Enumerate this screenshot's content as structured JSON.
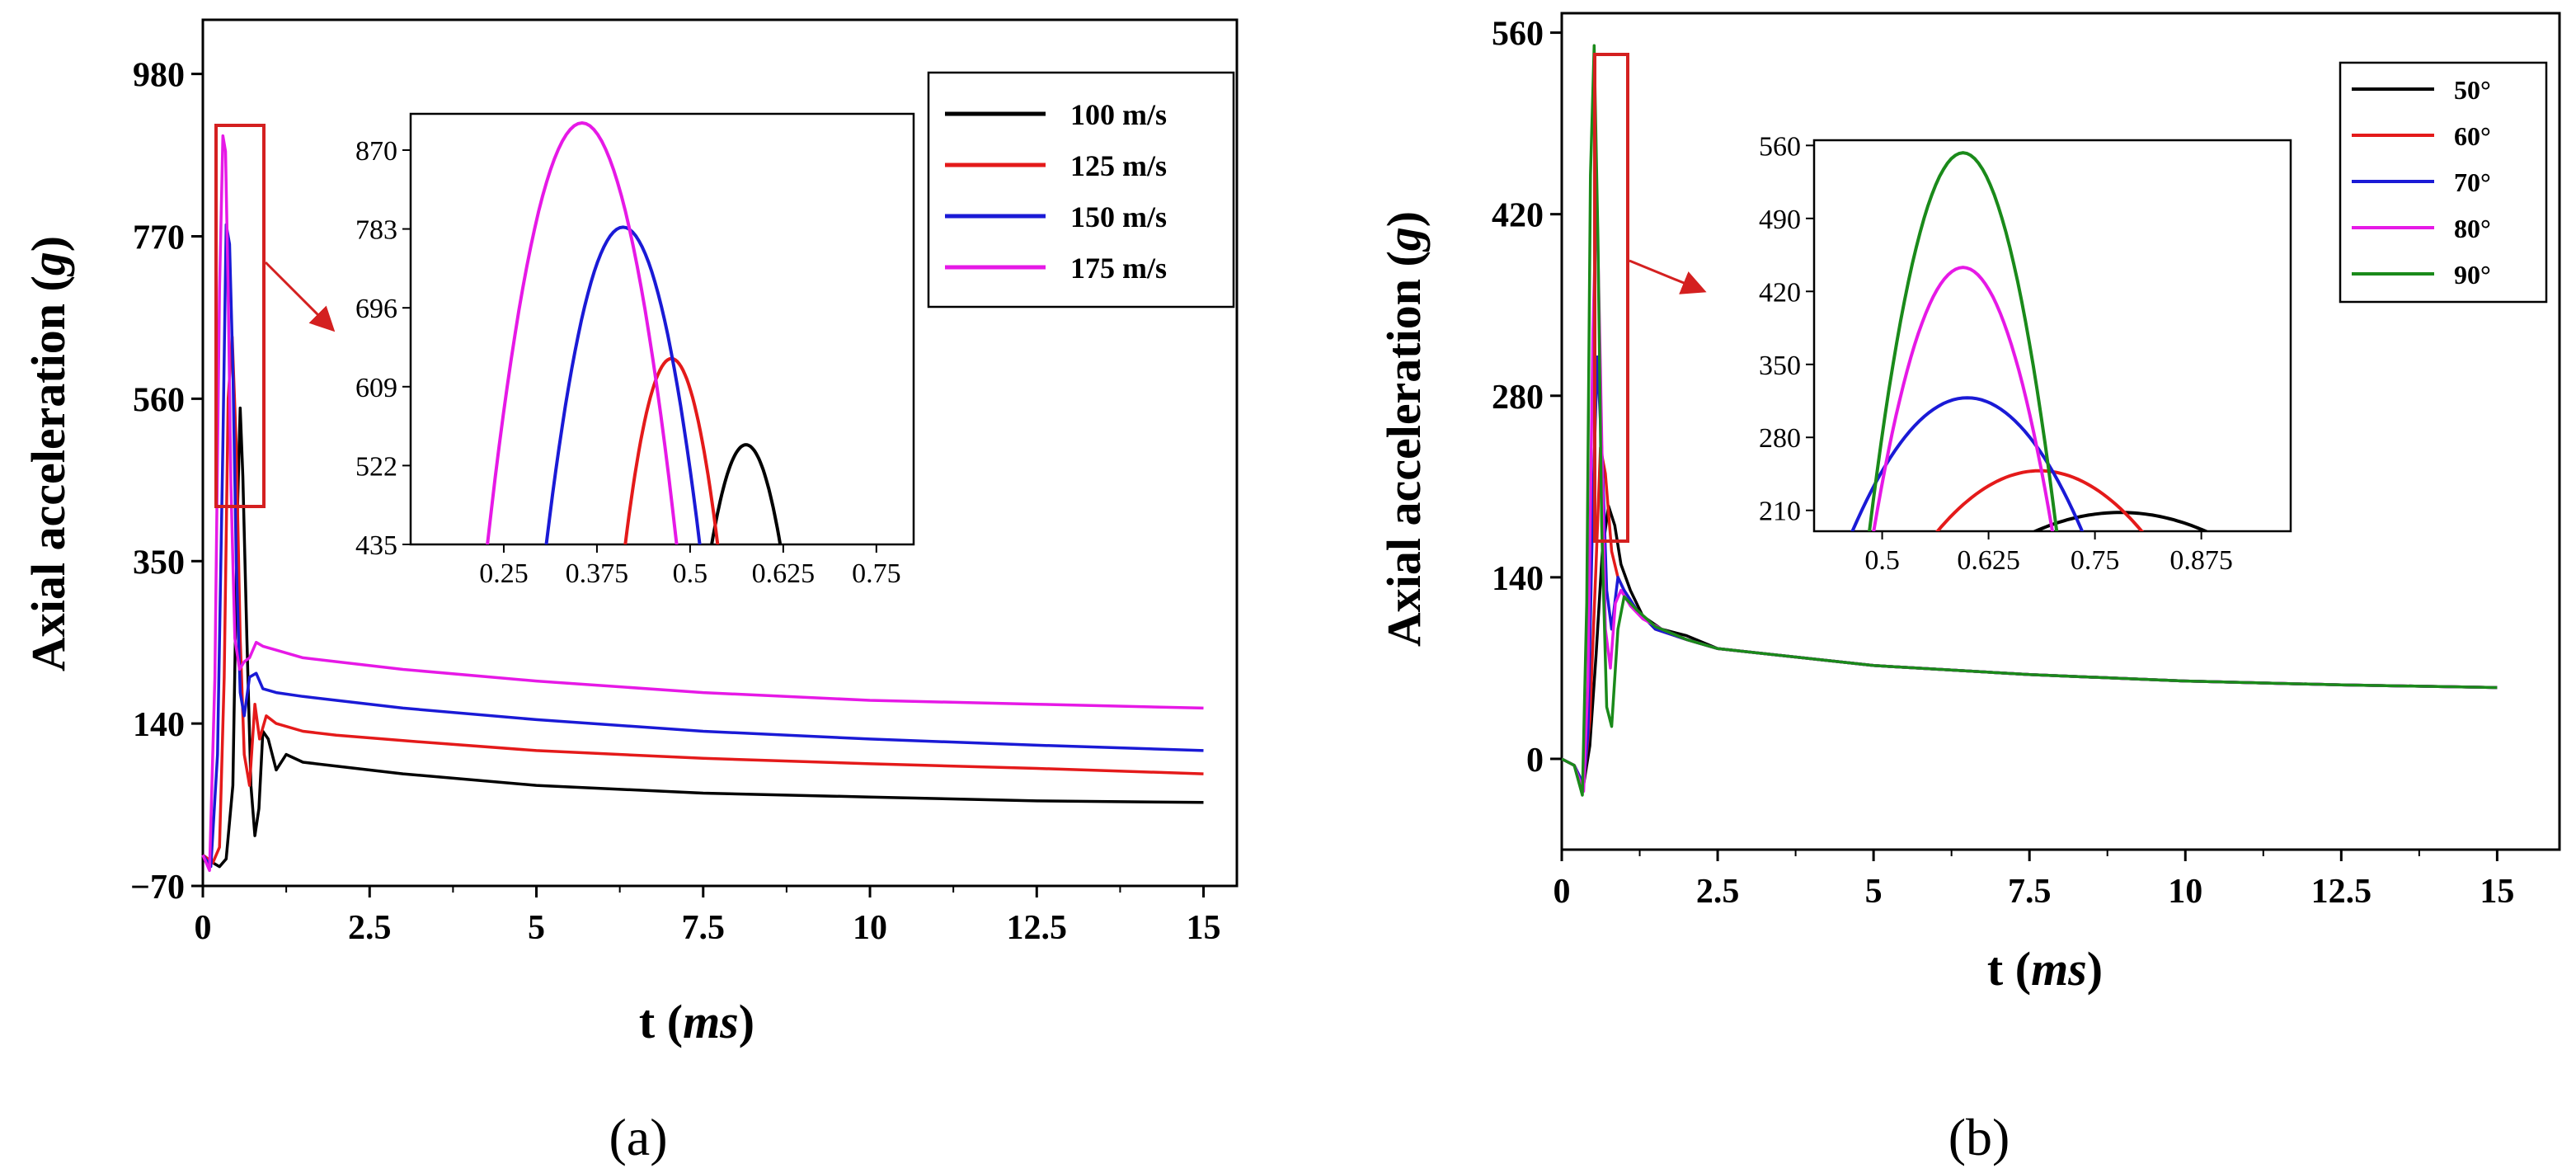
{
  "colors": {
    "black": "#000000",
    "red": "#e41a1a",
    "blue": "#1a1ad6",
    "magenta": "#e619e6",
    "green": "#1a8a1a",
    "zoom_box": "#d42020"
  },
  "chart_data": [
    {
      "panel_label": "(a)",
      "type": "line",
      "title": "",
      "xlabel": "t (ms)",
      "xlabel_main": "t (",
      "xlabel_unit": "ms",
      "xlabel_close": ")",
      "ylabel": "Axial acceleration (g)",
      "ylabel_main": "Axial acceleration (",
      "ylabel_unit": "g",
      "ylabel_close": ")",
      "xlim": [
        0,
        15.5
      ],
      "ylim": [
        -70,
        1050
      ],
      "xticks": [
        0,
        2.5,
        5,
        7.5,
        10,
        12.5,
        15
      ],
      "xtick_labels": [
        "0",
        "2.5",
        "5",
        "7.5",
        "10",
        "12.5",
        "15"
      ],
      "yticks": [
        -70,
        140,
        350,
        560,
        770,
        980
      ],
      "ytick_labels": [
        "−70",
        "140",
        "350",
        "560",
        "770",
        "980"
      ],
      "legend_position": "top-right",
      "series": [
        {
          "name": "100 m/s",
          "color": "#000000",
          "x": [
            0,
            0.15,
            0.25,
            0.35,
            0.45,
            0.52,
            0.56,
            0.6,
            0.66,
            0.72,
            0.78,
            0.84,
            0.9,
            0.98,
            1.1,
            1.25,
            1.5,
            2,
            3,
            5,
            7.5,
            10,
            12.5,
            15
          ],
          "y": [
            -30,
            -40,
            -45,
            -35,
            60,
            420,
            548,
            460,
            250,
            60,
            -5,
            30,
            130,
            120,
            80,
            100,
            90,
            85,
            75,
            60,
            50,
            45,
            40,
            38
          ]
        },
        {
          "name": "125 m/s",
          "color": "#e41a1a",
          "x": [
            0,
            0.15,
            0.25,
            0.32,
            0.38,
            0.44,
            0.5,
            0.56,
            0.62,
            0.7,
            0.78,
            0.85,
            0.95,
            1.1,
            1.5,
            2,
            3,
            5,
            7.5,
            10,
            12.5,
            15
          ],
          "y": [
            -30,
            -40,
            -20,
            200,
            560,
            640,
            500,
            250,
            100,
            60,
            165,
            120,
            150,
            140,
            130,
            125,
            118,
            105,
            95,
            88,
            82,
            75
          ]
        },
        {
          "name": "150 m/s",
          "color": "#1a1ad6",
          "x": [
            0,
            0.12,
            0.22,
            0.3,
            0.35,
            0.4,
            0.45,
            0.5,
            0.56,
            0.62,
            0.7,
            0.8,
            0.9,
            1.1,
            1.5,
            2,
            3,
            5,
            7.5,
            10,
            12.5,
            15
          ],
          "y": [
            -30,
            -45,
            100,
            500,
            785,
            760,
            600,
            350,
            180,
            150,
            200,
            205,
            185,
            180,
            175,
            170,
            160,
            145,
            130,
            120,
            112,
            105
          ]
        },
        {
          "name": "175 m/s",
          "color": "#e619e6",
          "x": [
            0,
            0.1,
            0.18,
            0.25,
            0.3,
            0.34,
            0.38,
            0.42,
            0.48,
            0.55,
            0.62,
            0.7,
            0.8,
            0.9,
            1.1,
            1.5,
            2,
            3,
            5,
            7.5,
            10,
            12.5,
            15
          ],
          "y": [
            -30,
            -50,
            200,
            700,
            900,
            880,
            700,
            450,
            250,
            210,
            220,
            225,
            245,
            240,
            235,
            225,
            220,
            210,
            195,
            180,
            170,
            165,
            160
          ]
        }
      ],
      "inset": {
        "xlim": [
          0.125,
          0.8
        ],
        "ylim": [
          435,
          910
        ],
        "xticks": [
          0.25,
          0.375,
          0.5,
          0.625,
          0.75
        ],
        "xtick_labels": [
          "0.25",
          "0.375",
          "0.5",
          "0.625",
          "0.75"
        ],
        "yticks": [
          435,
          522,
          609,
          696,
          783,
          870
        ],
        "ytick_labels": [
          "435",
          "522",
          "609",
          "696",
          "783",
          "870"
        ],
        "series": [
          {
            "name": "100 m/s",
            "peak_x": 0.575,
            "peak_y": 545,
            "half_width": 0.046
          },
          {
            "name": "125 m/s",
            "peak_x": 0.475,
            "peak_y": 640,
            "half_width": 0.062
          },
          {
            "name": "150 m/s",
            "peak_x": 0.41,
            "peak_y": 785,
            "half_width": 0.103
          },
          {
            "name": "175 m/s",
            "peak_x": 0.355,
            "peak_y": 900,
            "half_width": 0.127
          }
        ]
      }
    },
    {
      "panel_label": "(b)",
      "type": "line",
      "title": "",
      "xlabel": "t (ms)",
      "xlabel_main": "t (",
      "xlabel_unit": "ms",
      "xlabel_close": ")",
      "ylabel": "Axial acceleration (g)",
      "ylabel_main": "Axial acceleration (",
      "ylabel_unit": "g",
      "ylabel_close": ")",
      "xlim": [
        0,
        16
      ],
      "ylim": [
        -70,
        575
      ],
      "xticks": [
        0,
        2.5,
        5,
        7.5,
        10,
        12.5,
        15
      ],
      "xtick_labels": [
        "0",
        "2.5",
        "5",
        "7.5",
        "10",
        "12.5",
        "15"
      ],
      "yticks": [
        0,
        140,
        280,
        420,
        560
      ],
      "ytick_labels": [
        "0",
        "140",
        "280",
        "420",
        "560"
      ],
      "legend_position": "top-right",
      "series": [
        {
          "name": "50°",
          "color": "#000000",
          "x": [
            0,
            0.2,
            0.35,
            0.45,
            0.55,
            0.65,
            0.75,
            0.85,
            0.95,
            1.1,
            1.3,
            1.6,
            2,
            2.5,
            5,
            7.5,
            10,
            12.5,
            15
          ],
          "y": [
            0,
            -5,
            -20,
            10,
            80,
            160,
            195,
            180,
            150,
            130,
            110,
            100,
            95,
            85,
            72,
            65,
            60,
            57,
            55
          ]
        },
        {
          "name": "60°",
          "color": "#e41a1a",
          "x": [
            0,
            0.2,
            0.35,
            0.45,
            0.55,
            0.62,
            0.7,
            0.8,
            0.9,
            1.0,
            1.2,
            1.5,
            2,
            2.5,
            5,
            7.5,
            10,
            12.5,
            15
          ],
          "y": [
            0,
            -5,
            -20,
            30,
            150,
            240,
            220,
            160,
            140,
            130,
            115,
            100,
            92,
            85,
            72,
            65,
            60,
            57,
            55
          ]
        },
        {
          "name": "70°",
          "color": "#1a1ad6",
          "x": [
            0,
            0.2,
            0.35,
            0.42,
            0.5,
            0.57,
            0.65,
            0.72,
            0.8,
            0.9,
            1.0,
            1.2,
            1.5,
            2,
            2.5,
            5,
            7.5,
            10,
            12.5,
            15
          ],
          "y": [
            0,
            -5,
            -20,
            20,
            200,
            310,
            230,
            130,
            100,
            140,
            130,
            115,
            100,
            92,
            85,
            72,
            65,
            60,
            57,
            55
          ]
        },
        {
          "name": "80°",
          "color": "#e619e6",
          "x": [
            0,
            0.2,
            0.35,
            0.42,
            0.5,
            0.56,
            0.62,
            0.7,
            0.78,
            0.86,
            0.95,
            1.1,
            1.3,
            1.6,
            2,
            2.5,
            5,
            7.5,
            10,
            12.5,
            15
          ],
          "y": [
            0,
            -5,
            -25,
            60,
            330,
            440,
            300,
            100,
            70,
            120,
            130,
            118,
            108,
            100,
            92,
            85,
            72,
            65,
            60,
            57,
            55
          ]
        },
        {
          "name": "90°",
          "color": "#1a8a1a",
          "x": [
            0,
            0.2,
            0.33,
            0.4,
            0.46,
            0.52,
            0.58,
            0.64,
            0.72,
            0.8,
            0.9,
            1.0,
            1.2,
            1.5,
            2,
            2.5,
            5,
            7.5,
            10,
            12.5,
            15
          ],
          "y": [
            0,
            -5,
            -28,
            120,
            450,
            550,
            400,
            180,
            40,
            25,
            100,
            125,
            115,
            102,
            92,
            85,
            72,
            65,
            60,
            57,
            55
          ]
        }
      ],
      "inset": {
        "xlim": [
          0.42,
          0.98
        ],
        "ylim": [
          190,
          565
        ],
        "xticks": [
          0.5,
          0.625,
          0.75,
          0.875
        ],
        "xtick_labels": [
          "0.5",
          "0.625",
          "0.75",
          "0.875"
        ],
        "yticks": [
          210,
          280,
          350,
          420,
          490,
          560
        ],
        "ytick_labels": [
          "210",
          "280",
          "350",
          "420",
          "490",
          "560"
        ],
        "series": [
          {
            "name": "50°",
            "peak_x": 0.78,
            "peak_y": 208,
            "half_width": 0.1
          },
          {
            "name": "60°",
            "peak_x": 0.685,
            "peak_y": 248,
            "half_width": 0.12
          },
          {
            "name": "70°",
            "peak_x": 0.6,
            "peak_y": 318,
            "half_width": 0.135
          },
          {
            "name": "80°",
            "peak_x": 0.595,
            "peak_y": 443,
            "half_width": 0.105
          },
          {
            "name": "90°",
            "peak_x": 0.595,
            "peak_y": 553,
            "half_width": 0.11
          }
        ]
      }
    }
  ]
}
